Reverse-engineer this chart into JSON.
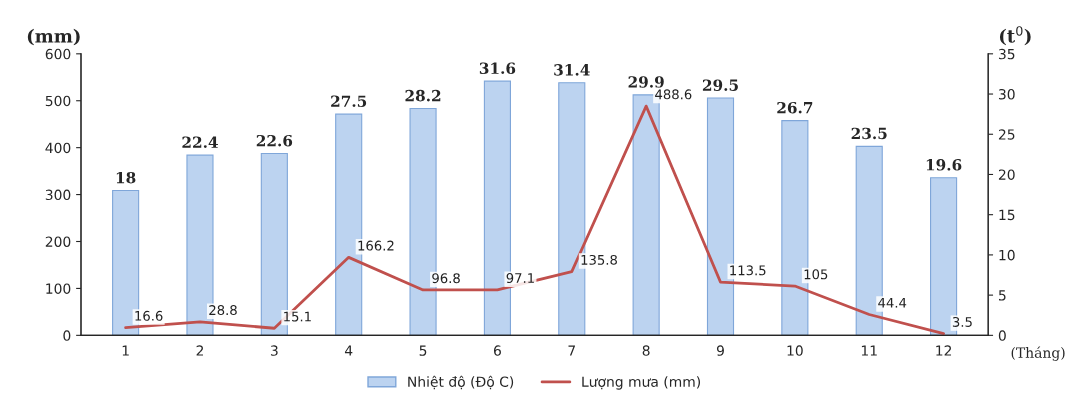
{
  "chart_data": {
    "type": "bar",
    "categories": [
      "1",
      "2",
      "3",
      "4",
      "5",
      "6",
      "7",
      "8",
      "9",
      "10",
      "11",
      "12"
    ],
    "xlabel": "(Tháng)",
    "ylabel": "(mm)",
    "y2label": "(t$^{0}$)",
    "series": [
      {
        "name": "Nhiệt độ (Độ C)",
        "axis": "y2",
        "color": "#bcd3f0",
        "values": [
          18,
          22.4,
          22.6,
          27.5,
          28.2,
          31.6,
          31.4,
          29.9,
          29.5,
          26.7,
          23.5,
          19.6
        ]
      },
      {
        "name": "Lượng mưa (mm)",
        "type": "line",
        "axis": "y",
        "color": "#c0504d",
        "values": [
          16.6,
          28.8,
          15.1,
          166.2,
          96.8,
          97.1,
          135.8,
          488.6,
          113.5,
          105,
          44.4,
          3.5
        ]
      }
    ],
    "ylim": [
      0,
      600
    ],
    "yticks": [
      0,
      100,
      200,
      300,
      400,
      500,
      600
    ],
    "y2lim": [
      0,
      35
    ],
    "y2ticks": [
      0,
      5,
      10,
      15,
      20,
      25,
      30,
      35
    ],
    "data_labels": true,
    "legend": "bottom",
    "grid": false,
    "marker": "none",
    "line_style": "solid"
  }
}
